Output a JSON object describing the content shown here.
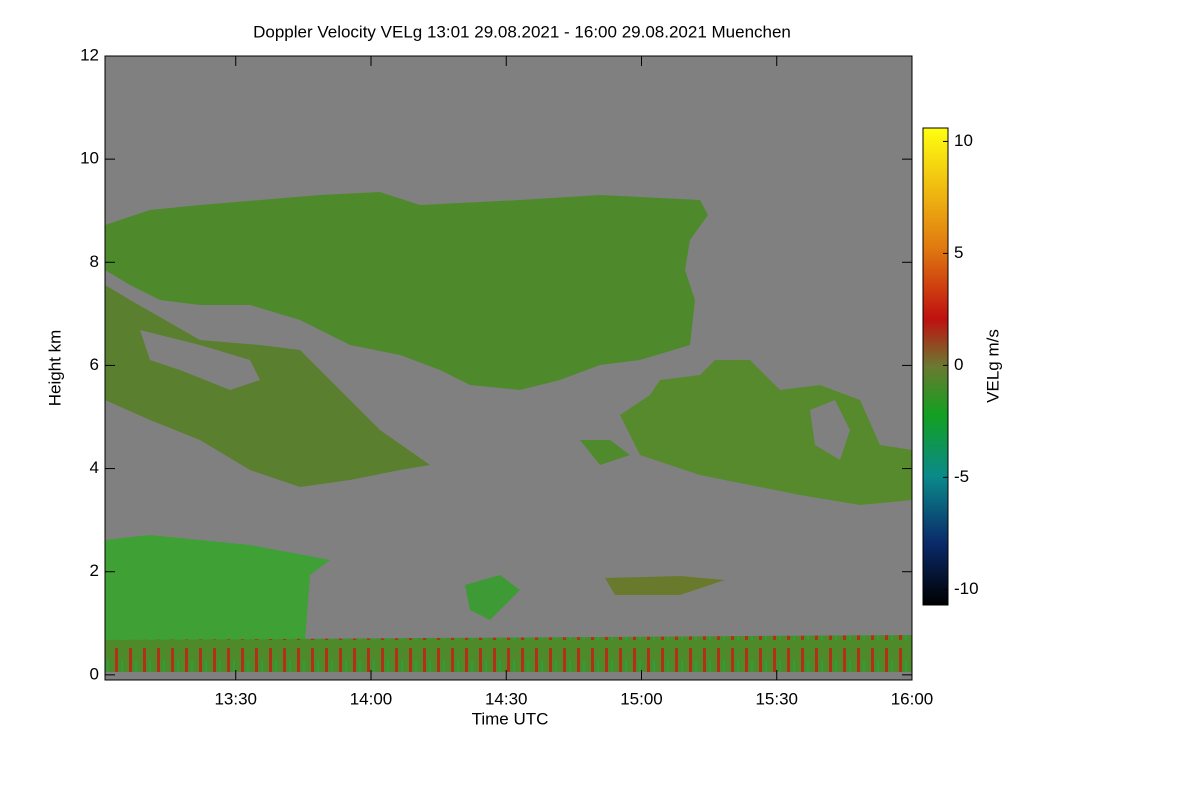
{
  "chart_data": {
    "type": "heatmap",
    "title": "Doppler Velocity VELg   13:01 29.08.2021 - 16:00 29.08.2021 Muenchen",
    "x_label": "Time UTC",
    "y_label": "Height km",
    "colorbar_label": "VELg m/s",
    "xlim": [
      "13:01",
      "16:00"
    ],
    "xticks": [
      "13:30",
      "14:00",
      "14:30",
      "15:00",
      "15:30",
      "16:00"
    ],
    "ylim": [
      -0.1,
      12
    ],
    "yticks": [
      0,
      2,
      4,
      6,
      8,
      10,
      12
    ],
    "clim": [
      -10.7,
      10.6
    ],
    "cticks": [
      -10,
      -5,
      0,
      5,
      10
    ]
  }
}
